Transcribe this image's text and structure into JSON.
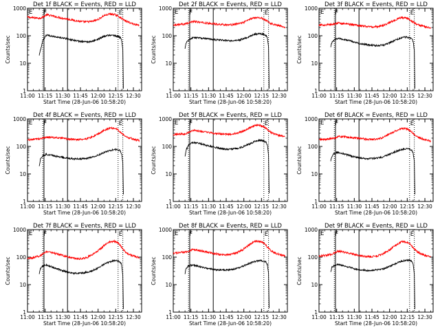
{
  "chart_data": {
    "type": "line",
    "grid": "3x3",
    "y_scale": "log",
    "ylim": [
      1,
      1000
    ],
    "yticks": [
      "1",
      "10",
      "100",
      "1000"
    ],
    "ylabel": "Counts/sec",
    "xlabel": "Start Time (28-Jun-06 10:58:20)",
    "xticks": [
      "11:00",
      "11:15",
      "11:30",
      "11:45",
      "12:00",
      "12:15",
      "12:30"
    ],
    "xtick_minutes": [
      0,
      15,
      30,
      45,
      60,
      75,
      90
    ],
    "xlim_minutes": [
      0,
      97
    ],
    "markers": [
      {
        "minute": 13,
        "label": "F",
        "style": "dotted",
        "labelled": true
      },
      {
        "minute": 14,
        "label": "",
        "style": "solid",
        "labelled": false
      },
      {
        "minute": 34,
        "label": "",
        "style": "solid",
        "labelled": false
      },
      {
        "minute": 77,
        "label": "E",
        "style": "dotted",
        "labelled": true
      },
      {
        "minute": 81,
        "label": "",
        "style": "dotted",
        "labelled": false
      }
    ],
    "corner_label": "E",
    "series_colors": {
      "events": "#000000",
      "lld": "#ff0000"
    },
    "x": [
      10,
      11,
      13,
      16,
      20,
      25,
      30,
      35,
      40,
      45,
      50,
      55,
      60,
      65,
      70,
      74,
      77,
      79,
      80,
      81,
      83,
      86,
      90,
      95
    ],
    "panels": [
      {
        "title": "Det 1f BLACK = Events, RED = LLD",
        "events": {
          "x_start": 10,
          "x_end": 81.5,
          "y_end": 1.2,
          "x": [
            10,
            11,
            13,
            16,
            20,
            25,
            30,
            35,
            40,
            45,
            50,
            55,
            60,
            65,
            70,
            74,
            77,
            79,
            80,
            81
          ],
          "y": [
            20,
            30,
            65,
            105,
            98,
            90,
            83,
            75,
            68,
            62,
            60,
            62,
            75,
            95,
            105,
            100,
            95,
            85,
            70,
            30
          ]
        },
        "lld": {
          "x": [
            0,
            5,
            10,
            13,
            16,
            20,
            25,
            30,
            35,
            40,
            45,
            50,
            55,
            60,
            65,
            70,
            74,
            77,
            79,
            81,
            83,
            86,
            90,
            95
          ],
          "y": [
            470,
            450,
            440,
            470,
            580,
            540,
            480,
            430,
            400,
            360,
            330,
            320,
            330,
            390,
            540,
            620,
            590,
            520,
            460,
            400,
            350,
            310,
            270,
            240
          ]
        }
      },
      {
        "title": "Det 2f BLACK = Events, RED = LLD",
        "events": {
          "x_start": 10,
          "x_end": 81.5,
          "y_end": 1.2,
          "x": [
            10,
            11,
            13,
            16,
            20,
            25,
            30,
            35,
            40,
            45,
            50,
            55,
            60,
            65,
            70,
            74,
            77,
            79,
            80,
            81
          ],
          "y": [
            35,
            55,
            70,
            85,
            85,
            80,
            76,
            72,
            70,
            67,
            65,
            68,
            78,
            95,
            115,
            120,
            110,
            100,
            80,
            40
          ]
        },
        "lld": {
          "x": [
            0,
            5,
            10,
            13,
            16,
            20,
            25,
            30,
            35,
            40,
            45,
            50,
            55,
            60,
            65,
            70,
            74,
            77,
            79,
            81,
            83,
            86,
            90,
            95
          ],
          "y": [
            250,
            260,
            270,
            290,
            330,
            320,
            300,
            280,
            270,
            260,
            250,
            250,
            270,
            310,
            400,
            470,
            450,
            400,
            360,
            320,
            280,
            260,
            230,
            210
          ]
        }
      },
      {
        "title": "Det 3f BLACK = Events, RED = LLD",
        "events": {
          "x_start": 10,
          "x_end": 81.5,
          "y_end": 1.2,
          "x": [
            10,
            11,
            13,
            16,
            20,
            25,
            30,
            35,
            40,
            45,
            50,
            55,
            60,
            65,
            70,
            74,
            77,
            79,
            80,
            81
          ],
          "y": [
            40,
            60,
            70,
            80,
            75,
            68,
            60,
            52,
            48,
            45,
            44,
            46,
            55,
            70,
            85,
            90,
            85,
            78,
            62,
            30
          ]
        },
        "lld": {
          "x": [
            0,
            5,
            10,
            13,
            16,
            20,
            25,
            30,
            35,
            40,
            45,
            50,
            55,
            60,
            65,
            70,
            74,
            77,
            79,
            81,
            83,
            86,
            90,
            95
          ],
          "y": [
            240,
            250,
            255,
            265,
            290,
            280,
            265,
            250,
            235,
            220,
            210,
            215,
            240,
            300,
            380,
            460,
            440,
            390,
            340,
            300,
            260,
            240,
            215,
            195
          ]
        }
      },
      {
        "title": "Det 4f BLACK = Events, RED = LLD",
        "events": {
          "x_start": 10,
          "x_end": 81.5,
          "y_end": 1.8,
          "x": [
            10,
            11,
            13,
            16,
            20,
            25,
            30,
            35,
            40,
            45,
            50,
            55,
            60,
            65,
            70,
            74,
            77,
            79,
            80,
            81
          ],
          "y": [
            20,
            35,
            45,
            52,
            48,
            43,
            40,
            37,
            35,
            35,
            37,
            40,
            48,
            60,
            72,
            78,
            75,
            68,
            55,
            25
          ]
        },
        "lld": {
          "x": [
            0,
            5,
            10,
            13,
            16,
            20,
            25,
            30,
            35,
            40,
            45,
            50,
            55,
            60,
            65,
            70,
            74,
            77,
            79,
            81,
            83,
            86,
            90,
            95
          ],
          "y": [
            170,
            180,
            190,
            200,
            220,
            215,
            205,
            195,
            185,
            178,
            180,
            190,
            220,
            280,
            380,
            470,
            460,
            400,
            330,
            280,
            240,
            210,
            185,
            165
          ]
        }
      },
      {
        "title": "Det 5f BLACK = Events, RED = LLD",
        "events": {
          "x_start": 10,
          "x_end": 81.5,
          "y_end": 2.0,
          "x": [
            10,
            11,
            13,
            16,
            20,
            25,
            30,
            35,
            40,
            45,
            50,
            55,
            60,
            65,
            70,
            74,
            77,
            79,
            80,
            81
          ],
          "y": [
            45,
            75,
            110,
            140,
            135,
            120,
            105,
            95,
            85,
            80,
            80,
            85,
            100,
            125,
            155,
            170,
            160,
            140,
            110,
            50
          ]
        },
        "lld": {
          "x": [
            0,
            5,
            10,
            13,
            16,
            20,
            25,
            30,
            35,
            40,
            45,
            50,
            55,
            60,
            65,
            70,
            74,
            77,
            79,
            81,
            83,
            86,
            90,
            95
          ],
          "y": [
            270,
            280,
            290,
            320,
            380,
            370,
            345,
            320,
            300,
            285,
            275,
            280,
            310,
            370,
            480,
            600,
            580,
            510,
            440,
            380,
            320,
            280,
            250,
            225
          ]
        }
      },
      {
        "title": "Det 6f BLACK = Events, RED = LLD",
        "events": {
          "x_start": 10,
          "x_end": 81.5,
          "y_end": 1.8,
          "x": [
            10,
            11,
            13,
            16,
            20,
            25,
            30,
            35,
            40,
            45,
            50,
            55,
            60,
            65,
            70,
            74,
            77,
            79,
            80,
            81
          ],
          "y": [
            30,
            45,
            55,
            60,
            55,
            48,
            42,
            38,
            36,
            36,
            38,
            42,
            52,
            65,
            78,
            82,
            78,
            70,
            58,
            28
          ]
        },
        "lld": {
          "x": [
            0,
            5,
            10,
            13,
            16,
            20,
            25,
            30,
            35,
            40,
            45,
            50,
            55,
            60,
            65,
            70,
            74,
            77,
            79,
            81,
            83,
            86,
            90,
            95
          ],
          "y": [
            175,
            180,
            190,
            200,
            230,
            225,
            215,
            205,
            195,
            185,
            180,
            185,
            215,
            280,
            370,
            450,
            440,
            390,
            320,
            270,
            230,
            200,
            175,
            160
          ]
        }
      },
      {
        "title": "Det 7f BLACK = Events, RED = LLD",
        "events": {
          "x_start": 10,
          "x_end": 81.5,
          "y_end": 1.3,
          "x": [
            10,
            11,
            13,
            16,
            20,
            25,
            30,
            35,
            40,
            45,
            50,
            55,
            60,
            65,
            70,
            74,
            77,
            79,
            80,
            81
          ],
          "y": [
            25,
            38,
            48,
            52,
            45,
            38,
            32,
            28,
            26,
            26,
            28,
            32,
            40,
            55,
            68,
            75,
            72,
            65,
            52,
            22
          ]
        },
        "lld": {
          "x": [
            0,
            5,
            10,
            13,
            16,
            20,
            25,
            30,
            35,
            40,
            45,
            50,
            55,
            60,
            65,
            70,
            74,
            77,
            79,
            81,
            83,
            86,
            90,
            95
          ],
          "y": [
            90,
            95,
            110,
            130,
            160,
            150,
            130,
            115,
            100,
            90,
            88,
            95,
            120,
            170,
            260,
            360,
            380,
            330,
            260,
            200,
            160,
            130,
            110,
            95
          ]
        }
      },
      {
        "title": "Det 8f BLACK = Events, RED = LLD",
        "events": {
          "x_start": 10,
          "x_end": 81.5,
          "y_end": 1.4,
          "x": [
            10,
            11,
            13,
            16,
            20,
            25,
            30,
            35,
            40,
            45,
            50,
            55,
            60,
            65,
            70,
            74,
            77,
            79,
            80,
            81
          ],
          "y": [
            25,
            40,
            48,
            52,
            48,
            42,
            38,
            35,
            34,
            34,
            36,
            40,
            48,
            60,
            70,
            75,
            72,
            65,
            52,
            24
          ]
        },
        "lld": {
          "x": [
            0,
            5,
            10,
            13,
            16,
            20,
            25,
            30,
            35,
            40,
            45,
            50,
            55,
            60,
            65,
            70,
            74,
            77,
            79,
            81,
            83,
            86,
            90,
            95
          ],
          "y": [
            140,
            145,
            150,
            160,
            190,
            180,
            165,
            150,
            135,
            125,
            122,
            128,
            150,
            200,
            290,
            380,
            370,
            320,
            260,
            210,
            170,
            145,
            125,
            110
          ]
        }
      },
      {
        "title": "Det 9f BLACK = Events, RED = LLD",
        "events": {
          "x_start": 10,
          "x_end": 81.5,
          "y_end": 1.3,
          "x": [
            10,
            11,
            13,
            16,
            20,
            25,
            30,
            35,
            40,
            45,
            50,
            55,
            60,
            65,
            70,
            74,
            77,
            79,
            80,
            81
          ],
          "y": [
            30,
            42,
            50,
            55,
            50,
            43,
            38,
            35,
            33,
            33,
            35,
            38,
            46,
            58,
            70,
            78,
            75,
            68,
            55,
            24
          ]
        },
        "lld": {
          "x": [
            0,
            5,
            10,
            13,
            16,
            20,
            25,
            30,
            35,
            40,
            45,
            50,
            55,
            60,
            65,
            70,
            74,
            77,
            79,
            81,
            83,
            86,
            90,
            95
          ],
          "y": [
            110,
            115,
            125,
            140,
            165,
            155,
            140,
            125,
            112,
            105,
            105,
            112,
            135,
            185,
            270,
            360,
            360,
            310,
            250,
            200,
            160,
            135,
            115,
            100
          ]
        }
      }
    ]
  }
}
